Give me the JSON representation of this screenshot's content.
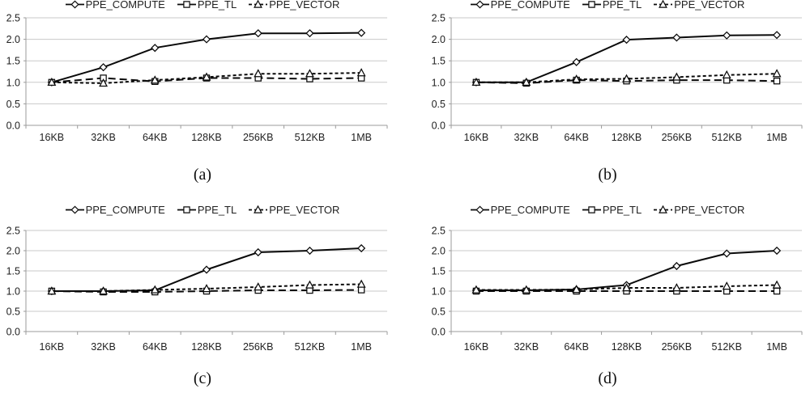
{
  "figure": {
    "type": "line-chart-grid",
    "rows": 2,
    "cols": 2,
    "background": "#ffffff"
  },
  "colors": {
    "series_line": "#0a0a0a",
    "marker_fill": "#ffffff",
    "gridline": "#c9c9c9",
    "axis": "#9b9b9b",
    "tick_text": "#1f1f1f",
    "legend_text": "#1f1f1f",
    "caption_text": "#111111"
  },
  "chart_data": [
    {
      "type": "line",
      "caption": "(a)",
      "title": "",
      "xlabel": "",
      "ylabel": "",
      "categories": [
        "16KB",
        "32KB",
        "64KB",
        "128KB",
        "256KB",
        "512KB",
        "1MB"
      ],
      "y_ticks": [
        "0.0",
        "0.5",
        "1.0",
        "1.5",
        "2.0",
        "2.5"
      ],
      "ylim": [
        0,
        2.5
      ],
      "grid": true,
      "legend_position": "top",
      "series": [
        {
          "name": "PPE_COMPUTE",
          "marker": "diamond",
          "line_style": "solid",
          "values": [
            1.0,
            1.35,
            1.8,
            2.0,
            2.14,
            2.14,
            2.15
          ]
        },
        {
          "name": "PPE_TL",
          "marker": "square",
          "line_style": "dash",
          "values": [
            1.0,
            1.1,
            1.02,
            1.1,
            1.1,
            1.08,
            1.1
          ]
        },
        {
          "name": "PPE_VECTOR",
          "marker": "triangle",
          "line_style": "short-dash",
          "values": [
            1.0,
            0.98,
            1.05,
            1.12,
            1.2,
            1.2,
            1.22
          ]
        }
      ]
    },
    {
      "type": "line",
      "caption": "(b)",
      "title": "",
      "xlabel": "",
      "ylabel": "",
      "categories": [
        "16KB",
        "32KB",
        "64KB",
        "128KB",
        "256KB",
        "512KB",
        "1MB"
      ],
      "y_ticks": [
        "0.0",
        "0.5",
        "1.0",
        "1.5",
        "2.0",
        "2.5"
      ],
      "ylim": [
        0,
        2.5
      ],
      "grid": true,
      "legend_position": "top",
      "series": [
        {
          "name": "PPE_COMPUTE",
          "marker": "diamond",
          "line_style": "solid",
          "values": [
            1.0,
            1.0,
            1.47,
            1.99,
            2.04,
            2.09,
            2.1
          ]
        },
        {
          "name": "PPE_TL",
          "marker": "square",
          "line_style": "dash",
          "values": [
            1.0,
            0.98,
            1.05,
            1.03,
            1.05,
            1.05,
            1.03
          ]
        },
        {
          "name": "PPE_VECTOR",
          "marker": "triangle",
          "line_style": "short-dash",
          "values": [
            1.0,
            1.0,
            1.07,
            1.08,
            1.12,
            1.17,
            1.2
          ]
        }
      ]
    },
    {
      "type": "line",
      "caption": "(c)",
      "title": "",
      "xlabel": "",
      "ylabel": "",
      "categories": [
        "16KB",
        "32KB",
        "64KB",
        "128KB",
        "256KB",
        "512KB",
        "1MB"
      ],
      "y_ticks": [
        "0.0",
        "0.5",
        "1.0",
        "1.5",
        "2.0",
        "2.5"
      ],
      "ylim": [
        0,
        2.5
      ],
      "grid": true,
      "legend_position": "top",
      "series": [
        {
          "name": "PPE_COMPUTE",
          "marker": "diamond",
          "line_style": "solid",
          "values": [
            1.0,
            1.0,
            1.02,
            1.53,
            1.96,
            2.0,
            2.06
          ]
        },
        {
          "name": "PPE_TL",
          "marker": "square",
          "line_style": "dash",
          "values": [
            1.0,
            0.98,
            0.98,
            1.0,
            1.02,
            1.02,
            1.03
          ]
        },
        {
          "name": "PPE_VECTOR",
          "marker": "triangle",
          "line_style": "short-dash",
          "values": [
            1.0,
            1.0,
            1.03,
            1.06,
            1.1,
            1.15,
            1.17
          ]
        }
      ]
    },
    {
      "type": "line",
      "caption": "(d)",
      "title": "",
      "xlabel": "",
      "ylabel": "",
      "categories": [
        "16KB",
        "32KB",
        "64KB",
        "128KB",
        "256KB",
        "512KB",
        "1MB"
      ],
      "y_ticks": [
        "0.0",
        "0.5",
        "1.0",
        "1.5",
        "2.0",
        "2.5"
      ],
      "ylim": [
        0,
        2.5
      ],
      "grid": true,
      "legend_position": "top",
      "series": [
        {
          "name": "PPE_COMPUTE",
          "marker": "diamond",
          "line_style": "solid",
          "values": [
            1.02,
            1.02,
            1.04,
            1.15,
            1.62,
            1.93,
            2.0
          ]
        },
        {
          "name": "PPE_TL",
          "marker": "square",
          "line_style": "dash",
          "values": [
            1.0,
            1.0,
            1.0,
            1.0,
            1.0,
            1.0,
            1.0
          ]
        },
        {
          "name": "PPE_VECTOR",
          "marker": "triangle",
          "line_style": "short-dash",
          "values": [
            1.03,
            1.03,
            1.04,
            1.08,
            1.08,
            1.12,
            1.15
          ]
        }
      ]
    }
  ]
}
